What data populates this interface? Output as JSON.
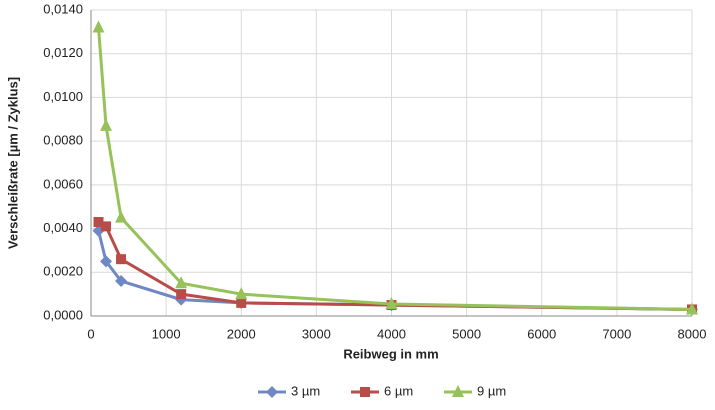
{
  "chart_data": {
    "type": "line",
    "x_label": "Reibweg in mm",
    "y_label": "Verschleißrate [µm / Zyklus]",
    "x": [
      100,
      200,
      400,
      1200,
      2000,
      4000,
      8000
    ],
    "series": [
      {
        "name": "3 µm",
        "color": "#6f88c4",
        "marker": "diamond",
        "values": [
          0.0039,
          0.0025,
          0.0016,
          0.00075,
          0.0006,
          0.0005,
          0.0003
        ]
      },
      {
        "name": "6 µm",
        "color": "#b84c48",
        "marker": "square",
        "values": [
          0.0043,
          0.0041,
          0.0026,
          0.001,
          0.0006,
          0.0005,
          0.0003
        ]
      },
      {
        "name": "9 µm",
        "color": "#97c25a",
        "marker": "triangle",
        "values": [
          0.0132,
          0.0087,
          0.0045,
          0.0015,
          0.001,
          0.00055,
          0.0003
        ]
      }
    ],
    "xlim": [
      0,
      8000
    ],
    "xticks": [
      0,
      1000,
      2000,
      3000,
      4000,
      5000,
      6000,
      7000,
      8000
    ],
    "ylim": [
      0,
      0.014
    ],
    "yticks": [
      {
        "value": 0,
        "label": "0,0000"
      },
      {
        "value": 0.002,
        "label": "0,0020"
      },
      {
        "value": 0.004,
        "label": "0,0040"
      },
      {
        "value": 0.006,
        "label": "0,0060"
      },
      {
        "value": 0.008,
        "label": "0,0080"
      },
      {
        "value": 0.01,
        "label": "0,0100"
      },
      {
        "value": 0.012,
        "label": "0,0120"
      },
      {
        "value": 0.014,
        "label": "0,0140"
      }
    ],
    "grid": true,
    "legend": "bottom"
  }
}
